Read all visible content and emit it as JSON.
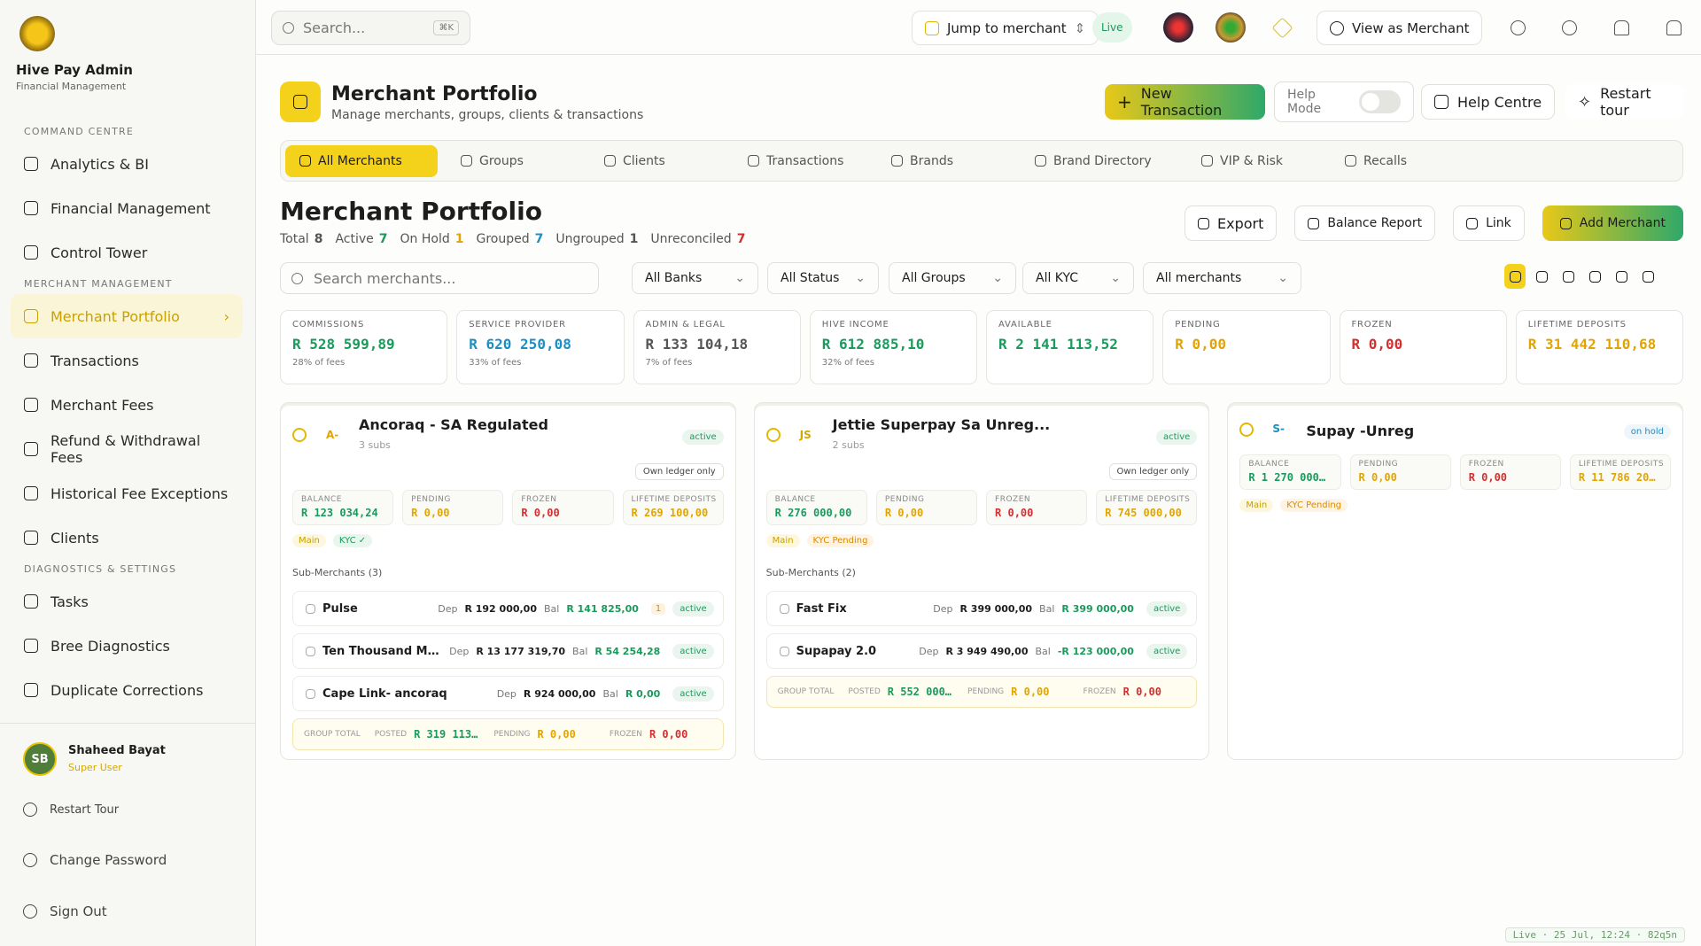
{
  "sidebar": {
    "brand": "Hive Pay Admin",
    "subtitle": "Financial Management",
    "sections": [
      {
        "title": "COMMAND CENTRE",
        "items": [
          "Analytics & BI",
          "Financial Management",
          "Control Tower"
        ]
      },
      {
        "title": "MERCHANT MANAGEMENT",
        "items": [
          "Merchant Portfolio",
          "Transactions",
          "Merchant Fees",
          "Refund & Withdrawal Fees",
          "Historical Fee Exceptions",
          "Clients"
        ]
      },
      {
        "title": "DIAGNOSTICS & SETTINGS",
        "items": [
          "Tasks",
          "Bree Diagnostics",
          "Duplicate Corrections"
        ]
      }
    ],
    "user": {
      "initials": "SB",
      "name": "Shaheed Bayat",
      "role": "Super User"
    },
    "footer": [
      "Restart Tour",
      "Change Password",
      "Sign Out"
    ]
  },
  "topbar": {
    "search": "Search...",
    "shortcut": "⌘K",
    "jump": "Jump to merchant",
    "live": "Live",
    "view_as": "View as Merchant"
  },
  "header": {
    "title": "Merchant Portfolio",
    "subtitle": "Manage merchants, groups, clients & transactions",
    "new_transaction": "New Transaction",
    "help_mode": "Help Mode",
    "help_centre": "Help Centre",
    "restart_tour": "Restart tour"
  },
  "tabs": [
    "All Merchants",
    "Groups",
    "Clients",
    "Transactions",
    "Brands",
    "Brand Directory",
    "VIP & Risk",
    "Recalls"
  ],
  "portfolio": {
    "title": "Merchant Portfolio",
    "stats": [
      {
        "label": "Total",
        "value": 8
      },
      {
        "label": "Active",
        "value": 7
      },
      {
        "label": "On Hold",
        "value": 1
      },
      {
        "label": "Grouped",
        "value": 7
      },
      {
        "label": "Ungrouped",
        "value": 1
      },
      {
        "label": "Unreconciled",
        "value": 7
      }
    ],
    "actions": [
      "Export",
      "Balance Report",
      "Link",
      "Add Merchant"
    ],
    "search": "Search merchants...",
    "filters": [
      "All Banks",
      "All Status",
      "All Groups",
      "All KYC",
      "All merchants"
    ]
  },
  "kpis": [
    {
      "label": "COMMISSIONS",
      "value": "R 528 599,89",
      "note": "28% of fees"
    },
    {
      "label": "SERVICE PROVIDER",
      "value": "R 620 250,08",
      "note": "33% of fees"
    },
    {
      "label": "ADMIN & LEGAL",
      "value": "R 133 104,18",
      "note": "7% of fees"
    },
    {
      "label": "HIVE INCOME",
      "value": "R 612 885,10",
      "note": "32% of fees"
    },
    {
      "label": "AVAILABLE",
      "value": "R 2 141 113,52"
    },
    {
      "label": "PENDING",
      "value": "R 0,00"
    },
    {
      "label": "FROZEN",
      "value": "R 0,00"
    },
    {
      "label": "LIFETIME DEPOSITS",
      "value": "R 31 442 110,68"
    }
  ],
  "card_labels": {
    "balance": "BALANCE",
    "pending": "PENDING",
    "frozen": "FROZEN",
    "lifetime": "LIFETIME DEPOSITS",
    "dep": "Dep",
    "bal": "Bal",
    "group_total": "GROUP TOTAL",
    "posted": "POSTED"
  },
  "merchants": [
    {
      "initials": "A-",
      "name": "Ancoraq - SA Regulated",
      "subs": "3 subs",
      "status": "active",
      "ledger": "Own ledger only",
      "balance": "R 123 034,24",
      "pending": "R 0,00",
      "frozen": "R 0,00",
      "lifetime": "R 269 100,00",
      "tags": [
        "Main",
        "KYC ✓"
      ],
      "sub_title": "Sub-Merchants (3)",
      "sub_merchants": [
        {
          "name": "Pulse",
          "dep": "R 192 000,00",
          "bal": "R 141 825,00",
          "badge": "1",
          "status": "active"
        },
        {
          "name": "Ten Thousand Miles- ...",
          "dep": "R 13 177 319,70",
          "bal": "R 54 254,28",
          "status": "active"
        },
        {
          "name": "Cape Link- ancoraq",
          "dep": "R 924 000,00",
          "bal": "R 0,00",
          "status": "active"
        }
      ],
      "group_total": {
        "posted": "R 319 113…",
        "pending": "R 0,00",
        "frozen": "R 0,00"
      }
    },
    {
      "initials": "JS",
      "name": "Jettie Superpay Sa Unreg...",
      "subs": "2 subs",
      "status": "active",
      "ledger": "Own ledger only",
      "balance": "R 276 000,00",
      "pending": "R 0,00",
      "frozen": "R 0,00",
      "lifetime": "R 745 000,00",
      "tags": [
        "Main",
        "KYC Pending"
      ],
      "sub_title": "Sub-Merchants (2)",
      "sub_merchants": [
        {
          "name": "Fast Fix",
          "dep": "R 399 000,00",
          "bal": "R 399 000,00",
          "status": "active"
        },
        {
          "name": "Supapay 2.0",
          "dep": "R 3 949 490,00",
          "bal": "-R 123 000,00",
          "status": "active"
        }
      ],
      "group_total": {
        "posted": "R 552 000…",
        "pending": "R 0,00",
        "frozen": "R 0,00"
      }
    },
    {
      "initials": "S-",
      "name": "Supay -Unreg",
      "status": "on hold",
      "balance": "R 1 270 000…",
      "pending": "R 0,00",
      "frozen": "R 0,00",
      "lifetime": "R 11 786 20…",
      "tags": [
        "Main",
        "KYC Pending"
      ]
    }
  ],
  "status_bar": "Live · 25 Jul, 12:24 · 82q5n"
}
